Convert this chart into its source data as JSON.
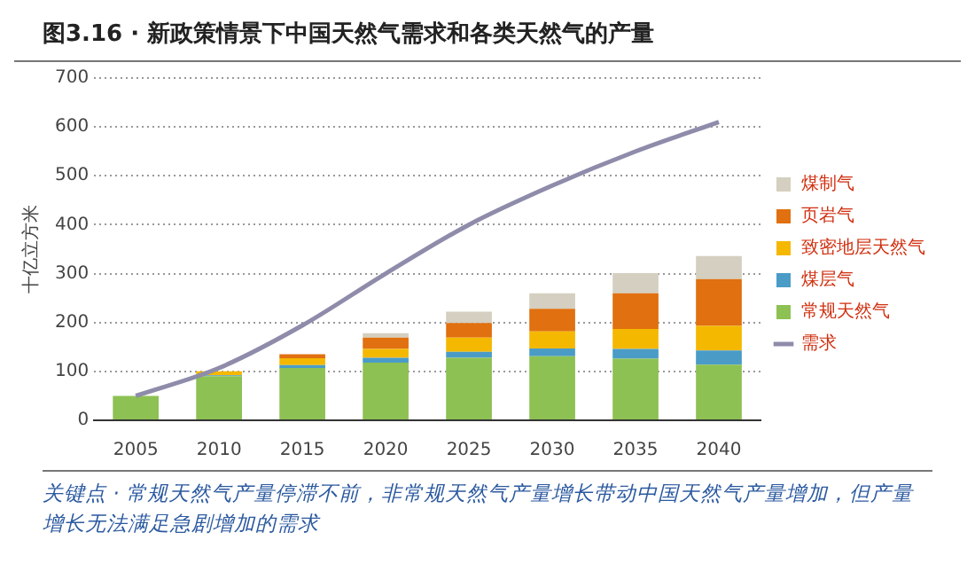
{
  "chart_data": {
    "type": "bar",
    "title": "图3.16 · 新政策情景下中国天然气需求和各类天然气的产量",
    "ylabel": "十亿立方米",
    "categories": [
      "2005",
      "2010",
      "2015",
      "2020",
      "2025",
      "2030",
      "2035",
      "2040"
    ],
    "stacked": true,
    "series": [
      {
        "name": "常规天然气",
        "color": "#8dc153",
        "values": [
          50,
          90,
          107,
          118,
          128,
          131,
          126,
          114
        ]
      },
      {
        "name": "煤层气",
        "color": "#4a9cc7",
        "values": [
          0,
          2,
          6,
          10,
          12,
          16,
          20,
          29
        ]
      },
      {
        "name": "致密地层天然气",
        "color": "#f5b800",
        "values": [
          0,
          8,
          14,
          18,
          29,
          35,
          41,
          50
        ]
      },
      {
        "name": "页岩气",
        "color": "#e07010",
        "values": [
          0,
          0,
          8,
          23,
          30,
          46,
          73,
          96
        ]
      },
      {
        "name": "煤制气",
        "color": "#d4cfc0",
        "values": [
          0,
          0,
          0,
          9,
          23,
          32,
          41,
          47
        ]
      },
      {
        "name": "需求",
        "type": "line",
        "color": "#8e8caa",
        "values": [
          50,
          107,
          194,
          300,
          400,
          480,
          550,
          610
        ]
      }
    ],
    "ylim": [
      0,
      700
    ],
    "yticks": [
      0,
      100,
      200,
      300,
      400,
      500,
      600,
      700
    ],
    "grid": "y",
    "legend": "right",
    "marker": "none",
    "annotations": [
      "关键点 · 常规天然气产量停滞不前，非常规天然气产量增长带动中国天然气产量增加，但产量增长无法满足急剧增加的需求"
    ]
  }
}
